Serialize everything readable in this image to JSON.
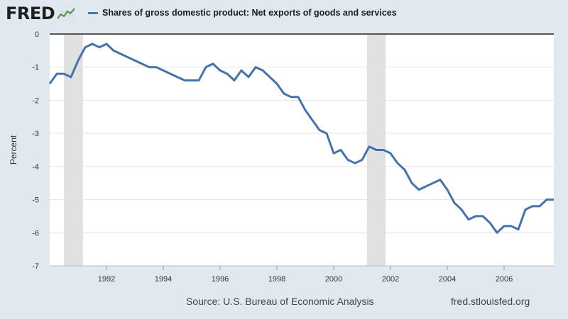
{
  "brand": {
    "logo_text": "FRED"
  },
  "footer": {
    "source": "Source: U.S. Bureau of Economic Analysis",
    "url": "fred.stlouisfed.org"
  },
  "colors": {
    "series": "#4572a7",
    "recession": "#e1e1e1",
    "background": "#e1e9f0",
    "plot": "#ffffff"
  },
  "chart_data": {
    "type": "line",
    "title": "",
    "xlabel": "",
    "ylabel": "Percent",
    "xlim": [
      1990.0,
      2007.75
    ],
    "ylim": [
      -7,
      0
    ],
    "grid": true,
    "legend_position": "top-left",
    "x_ticks": [
      1992,
      1994,
      1996,
      1998,
      2000,
      2002,
      2004,
      2006
    ],
    "x_tick_labels": [
      "1992",
      "1994",
      "1996",
      "1998",
      "2000",
      "2002",
      "2004",
      "2006"
    ],
    "y_ticks": [
      0,
      -1,
      -2,
      -3,
      -4,
      -5,
      -6,
      -7
    ],
    "y_tick_labels": [
      "0",
      "-1",
      "-2",
      "-3",
      "-4",
      "-5",
      "-6",
      "-7"
    ],
    "recessions": [
      [
        1990.5,
        1991.17
      ],
      [
        2001.17,
        2001.83
      ]
    ],
    "series": [
      {
        "name": "Shares of gross domestic product: Net exports of goods and services",
        "x": [
          1990.0,
          1990.25,
          1990.5,
          1990.75,
          1991.0,
          1991.25,
          1991.5,
          1991.75,
          1992.0,
          1992.25,
          1992.5,
          1992.75,
          1993.0,
          1993.25,
          1993.5,
          1993.75,
          1994.0,
          1994.25,
          1994.5,
          1994.75,
          1995.0,
          1995.25,
          1995.5,
          1995.75,
          1996.0,
          1996.25,
          1996.5,
          1996.75,
          1997.0,
          1997.25,
          1997.5,
          1997.75,
          1998.0,
          1998.25,
          1998.5,
          1998.75,
          1999.0,
          1999.25,
          1999.5,
          1999.75,
          2000.0,
          2000.25,
          2000.5,
          2000.75,
          2001.0,
          2001.25,
          2001.5,
          2001.75,
          2002.0,
          2002.25,
          2002.5,
          2002.75,
          2003.0,
          2003.25,
          2003.5,
          2003.75,
          2004.0,
          2004.25,
          2004.5,
          2004.75,
          2005.0,
          2005.25,
          2005.5,
          2005.75,
          2006.0,
          2006.25,
          2006.5,
          2006.75,
          2007.0,
          2007.25,
          2007.5,
          2007.75
        ],
        "y": [
          -1.5,
          -1.2,
          -1.2,
          -1.3,
          -0.8,
          -0.4,
          -0.3,
          -0.4,
          -0.3,
          -0.5,
          -0.6,
          -0.7,
          -0.8,
          -0.9,
          -1.0,
          -1.0,
          -1.1,
          -1.2,
          -1.3,
          -1.4,
          -1.4,
          -1.4,
          -1.0,
          -0.9,
          -1.1,
          -1.2,
          -1.4,
          -1.1,
          -1.3,
          -1.0,
          -1.1,
          -1.3,
          -1.5,
          -1.8,
          -1.9,
          -1.9,
          -2.3,
          -2.6,
          -2.9,
          -3.0,
          -3.6,
          -3.5,
          -3.8,
          -3.9,
          -3.8,
          -3.4,
          -3.5,
          -3.5,
          -3.6,
          -3.9,
          -4.1,
          -4.5,
          -4.7,
          -4.6,
          -4.5,
          -4.4,
          -4.7,
          -5.1,
          -5.3,
          -5.6,
          -5.5,
          -5.5,
          -5.7,
          -6.0,
          -5.8,
          -5.8,
          -5.9,
          -5.3,
          -5.2,
          -5.2,
          -5.0,
          -5.0
        ]
      }
    ]
  }
}
